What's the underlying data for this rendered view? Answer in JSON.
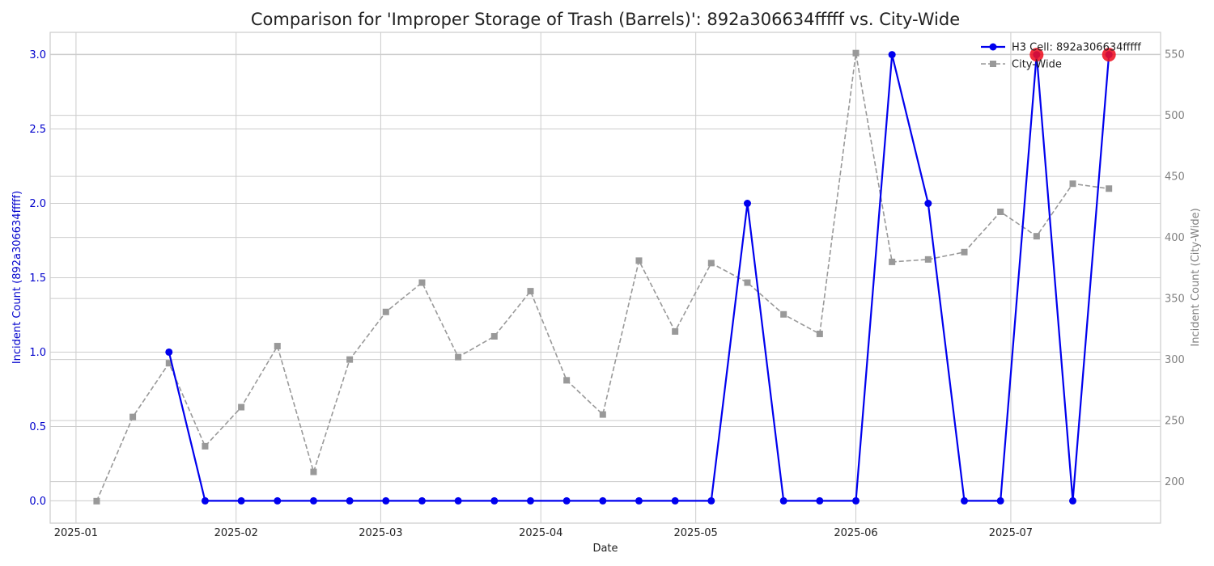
{
  "chart_data": {
    "type": "line",
    "title": "Comparison for 'Improper Storage of Trash (Barrels)': 892a306634fffff vs. City-Wide",
    "xlabel": "Date",
    "ylabel_left": "Incident Count (892a306634fffff)",
    "ylabel_right": "Incident Count (City-Wide)",
    "xlim": [
      "2024-12-27",
      "2025-07-30"
    ],
    "ylim_left": [
      -0.15,
      3.15
    ],
    "ylim_right": [
      166,
      568
    ],
    "x_ticks": [
      "2025-01-01",
      "2025-02-01",
      "2025-03-01",
      "2025-04-01",
      "2025-05-01",
      "2025-06-01",
      "2025-07-01"
    ],
    "x_tick_labels": [
      "2025-01",
      "2025-02",
      "2025-03",
      "2025-04",
      "2025-05",
      "2025-06",
      "2025-07"
    ],
    "y_ticks_left": [
      0.0,
      0.5,
      1.0,
      1.5,
      2.0,
      2.5,
      3.0
    ],
    "y_tick_labels_left": [
      "0.0",
      "0.5",
      "1.0",
      "1.5",
      "2.0",
      "2.5",
      "3.0"
    ],
    "y_ticks_right": [
      200,
      250,
      300,
      350,
      400,
      450,
      500,
      550
    ],
    "y_tick_labels_right": [
      "200",
      "250",
      "300",
      "350",
      "400",
      "450",
      "500",
      "550"
    ],
    "legend_position": "top-right",
    "series": [
      {
        "name": "H3 Cell: 892a306634fffff",
        "axis": "left",
        "color": "#0000ee",
        "style": "solid",
        "marker": "circle",
        "points": [
          {
            "x": "2025-01-19",
            "y": 1
          },
          {
            "x": "2025-01-26",
            "y": 0
          },
          {
            "x": "2025-02-02",
            "y": 0
          },
          {
            "x": "2025-02-09",
            "y": 0
          },
          {
            "x": "2025-02-16",
            "y": 0
          },
          {
            "x": "2025-02-23",
            "y": 0
          },
          {
            "x": "2025-03-02",
            "y": 0
          },
          {
            "x": "2025-03-09",
            "y": 0
          },
          {
            "x": "2025-03-16",
            "y": 0
          },
          {
            "x": "2025-03-23",
            "y": 0
          },
          {
            "x": "2025-03-30",
            "y": 0
          },
          {
            "x": "2025-04-06",
            "y": 0
          },
          {
            "x": "2025-04-13",
            "y": 0
          },
          {
            "x": "2025-04-20",
            "y": 0
          },
          {
            "x": "2025-04-27",
            "y": 0
          },
          {
            "x": "2025-05-04",
            "y": 0
          },
          {
            "x": "2025-05-11",
            "y": 2
          },
          {
            "x": "2025-05-18",
            "y": 0
          },
          {
            "x": "2025-05-25",
            "y": 0
          },
          {
            "x": "2025-06-01",
            "y": 0
          },
          {
            "x": "2025-06-08",
            "y": 3
          },
          {
            "x": "2025-06-15",
            "y": 2
          },
          {
            "x": "2025-06-22",
            "y": 0
          },
          {
            "x": "2025-06-29",
            "y": 0
          },
          {
            "x": "2025-07-06",
            "y": 3
          },
          {
            "x": "2025-07-13",
            "y": 0
          },
          {
            "x": "2025-07-20",
            "y": 3
          }
        ]
      },
      {
        "name": "City-Wide",
        "axis": "right",
        "color": "#999999",
        "style": "dashed",
        "marker": "square",
        "points": [
          {
            "x": "2025-01-05",
            "y": 184
          },
          {
            "x": "2025-01-12",
            "y": 253
          },
          {
            "x": "2025-01-19",
            "y": 297
          },
          {
            "x": "2025-01-26",
            "y": 229
          },
          {
            "x": "2025-02-02",
            "y": 261
          },
          {
            "x": "2025-02-09",
            "y": 311
          },
          {
            "x": "2025-02-16",
            "y": 208
          },
          {
            "x": "2025-02-23",
            "y": 300
          },
          {
            "x": "2025-03-02",
            "y": 339
          },
          {
            "x": "2025-03-09",
            "y": 363
          },
          {
            "x": "2025-03-16",
            "y": 302
          },
          {
            "x": "2025-03-23",
            "y": 319
          },
          {
            "x": "2025-03-30",
            "y": 356
          },
          {
            "x": "2025-04-06",
            "y": 283
          },
          {
            "x": "2025-04-13",
            "y": 255
          },
          {
            "x": "2025-04-20",
            "y": 381
          },
          {
            "x": "2025-04-27",
            "y": 323
          },
          {
            "x": "2025-05-04",
            "y": 379
          },
          {
            "x": "2025-05-11",
            "y": 363
          },
          {
            "x": "2025-05-18",
            "y": 337
          },
          {
            "x": "2025-05-25",
            "y": 321
          },
          {
            "x": "2025-06-01",
            "y": 551
          },
          {
            "x": "2025-06-08",
            "y": 380
          },
          {
            "x": "2025-06-15",
            "y": 382
          },
          {
            "x": "2025-06-22",
            "y": 388
          },
          {
            "x": "2025-06-29",
            "y": 421
          },
          {
            "x": "2025-07-06",
            "y": 401
          },
          {
            "x": "2025-07-13",
            "y": 444
          },
          {
            "x": "2025-07-20",
            "y": 440
          }
        ]
      }
    ],
    "highlights": [
      {
        "x": "2025-07-06",
        "y": 3,
        "axis": "left",
        "color": "#ee1122"
      },
      {
        "x": "2025-07-20",
        "y": 3,
        "axis": "left",
        "color": "#ee1122"
      }
    ],
    "colors": {
      "left_axis": "#0000cc",
      "right_axis": "#808080"
    }
  }
}
